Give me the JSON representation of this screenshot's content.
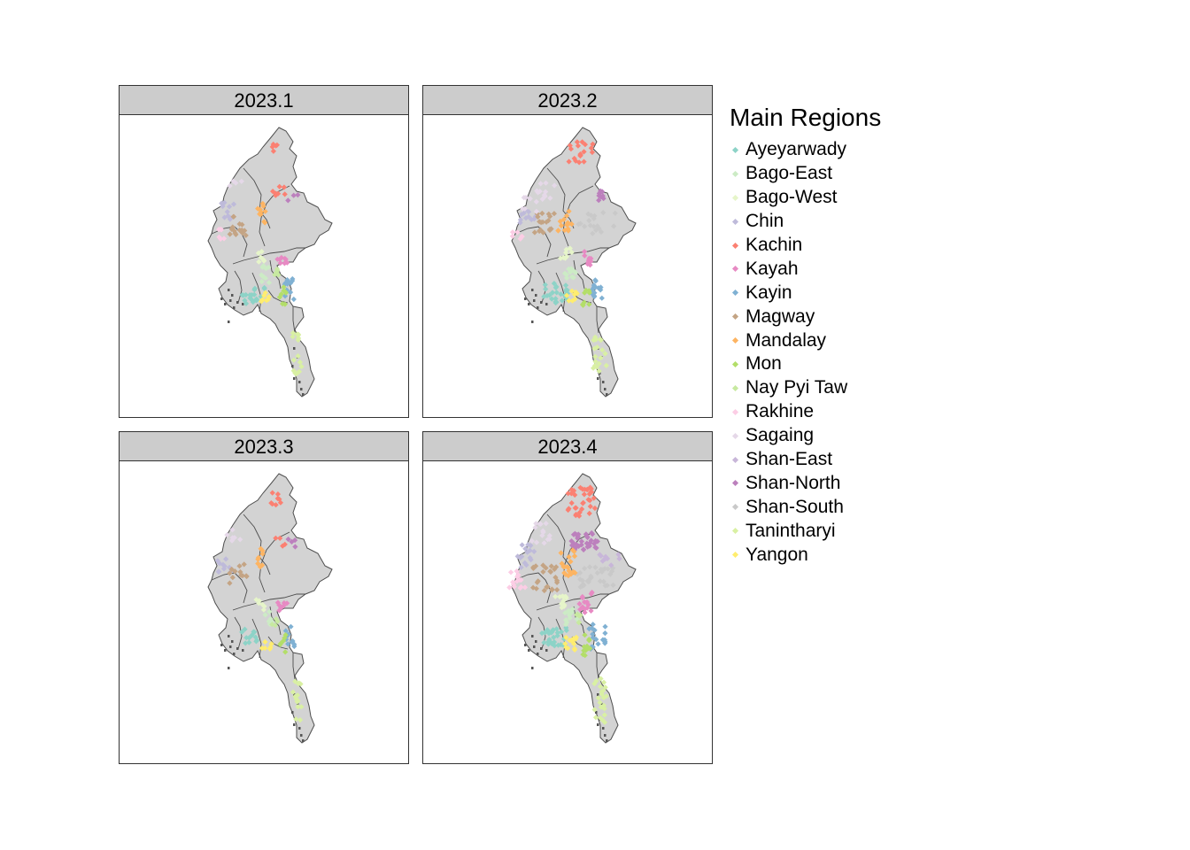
{
  "panels": [
    {
      "label": "2023.1",
      "scheme": 0
    },
    {
      "label": "2023.2",
      "scheme": 1
    },
    {
      "label": "2023.3",
      "scheme": 2
    },
    {
      "label": "2023.4",
      "scheme": 3
    }
  ],
  "legend": {
    "title": "Main Regions",
    "items": [
      {
        "label": "Ayeyarwady",
        "color": "#8dd3c7"
      },
      {
        "label": "Bago-East",
        "color": "#ccebc5"
      },
      {
        "label": "Bago-West",
        "color": "#e6f5c9"
      },
      {
        "label": "Chin",
        "color": "#bebada"
      },
      {
        "label": "Kachin",
        "color": "#fb8072"
      },
      {
        "label": "Kayah",
        "color": "#e78ac3"
      },
      {
        "label": "Kayin",
        "color": "#80b1d3"
      },
      {
        "label": "Magway",
        "color": "#c4a484"
      },
      {
        "label": "Mandalay",
        "color": "#fdb462"
      },
      {
        "label": "Mon",
        "color": "#b3de69"
      },
      {
        "label": "Nay Pyi Taw",
        "color": "#c7e9a0"
      },
      {
        "label": "Rakhine",
        "color": "#fccde5"
      },
      {
        "label": "Sagaing",
        "color": "#e5d8e8"
      },
      {
        "label": "Shan-East",
        "color": "#c8b6d9"
      },
      {
        "label": "Shan-North",
        "color": "#bc80bd"
      },
      {
        "label": "Shan-South",
        "color": "#c9c9c9"
      },
      {
        "label": "Tanintharyi",
        "color": "#d9f0a3"
      },
      {
        "label": "Yangon",
        "color": "#ffed6f"
      }
    ]
  }
}
